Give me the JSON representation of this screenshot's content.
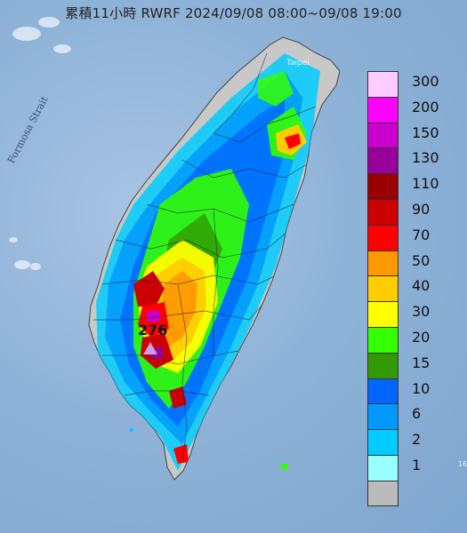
{
  "title": "累積11小時 RWRF 2024/09/08 08:00~09/08 19:00",
  "strait_label": "Formosa Strait",
  "city_label": "Taipei",
  "max_value": "276",
  "edge_text": "16",
  "legend": [
    {
      "label": "300",
      "color": "#ffccff"
    },
    {
      "label": "200",
      "color": "#ff00ff"
    },
    {
      "label": "150",
      "color": "#cc00cc"
    },
    {
      "label": "130",
      "color": "#990099"
    },
    {
      "label": "110",
      "color": "#990000"
    },
    {
      "label": "90",
      "color": "#cc0000"
    },
    {
      "label": "70",
      "color": "#ff0000"
    },
    {
      "label": "50",
      "color": "#ff9900"
    },
    {
      "label": "40",
      "color": "#ffcc00"
    },
    {
      "label": "30",
      "color": "#ffff00"
    },
    {
      "label": "20",
      "color": "#33ff00"
    },
    {
      "label": "15",
      "color": "#339900"
    },
    {
      "label": "10",
      "color": "#0066ff"
    },
    {
      "label": "6",
      "color": "#0099ff"
    },
    {
      "label": "2",
      "color": "#00ccff"
    },
    {
      "label": "1",
      "color": "#99ffff"
    },
    {
      "label": "",
      "color": "#bbbbbb"
    }
  ]
}
